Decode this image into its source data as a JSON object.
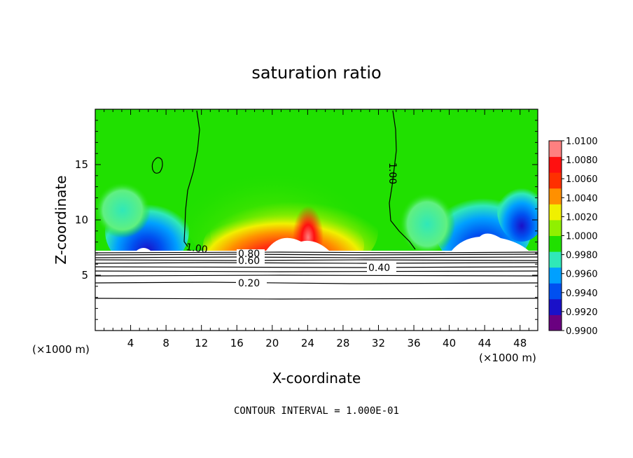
{
  "chart_data": {
    "type": "heatmap",
    "title": "saturation ratio",
    "xlabel": "X-coordinate",
    "ylabel": "Z-coordinate",
    "x_unit": "(×1000 m)",
    "xlim": [
      0,
      50
    ],
    "ylim": [
      0,
      20
    ],
    "x_ticks": [
      4,
      8,
      12,
      16,
      20,
      24,
      28,
      32,
      36,
      40,
      44,
      48
    ],
    "y_ticks": [
      5,
      10,
      15
    ],
    "colorbar": {
      "min": 0.99,
      "max": 1.01,
      "tick_labels": [
        "1.0100",
        "1.0080",
        "1.0060",
        "1.0040",
        "1.0020",
        "1.0000",
        "0.9980",
        "0.9960",
        "0.9940",
        "0.9920",
        "0.9900"
      ],
      "colors": [
        "#6a0080",
        "#1a10c8",
        "#0050f0",
        "#00a0ff",
        "#30e8b8",
        "#20e000",
        "#90f000",
        "#f0f000",
        "#ff9000",
        "#ff3000",
        "#ff1010",
        "#ff8080"
      ]
    },
    "contour_labels": [
      "1.00",
      "1.00",
      "0.80",
      "0.60",
      "0.40",
      "0.20"
    ],
    "annotation": "CONTOUR INTERVAL = 1.000E-01"
  }
}
